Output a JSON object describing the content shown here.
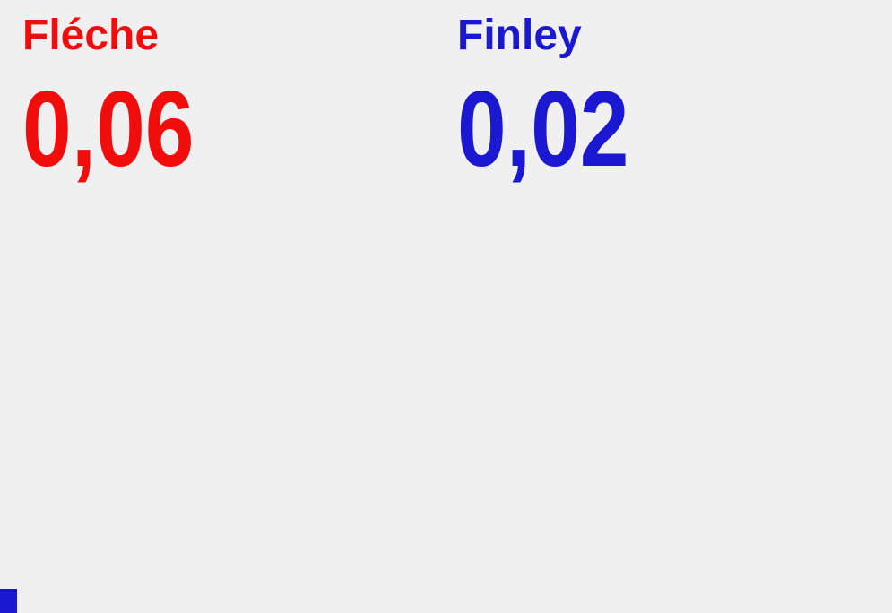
{
  "background_color": "#f0f0f0",
  "players": [
    {
      "name": "Fléche",
      "value": "0,06",
      "color": "#f20d0d"
    },
    {
      "name": "Finley",
      "value": "0,02",
      "color": "#1b18d2"
    }
  ],
  "sprite": {
    "shape": "blue-square",
    "color": "#1b18d2"
  }
}
